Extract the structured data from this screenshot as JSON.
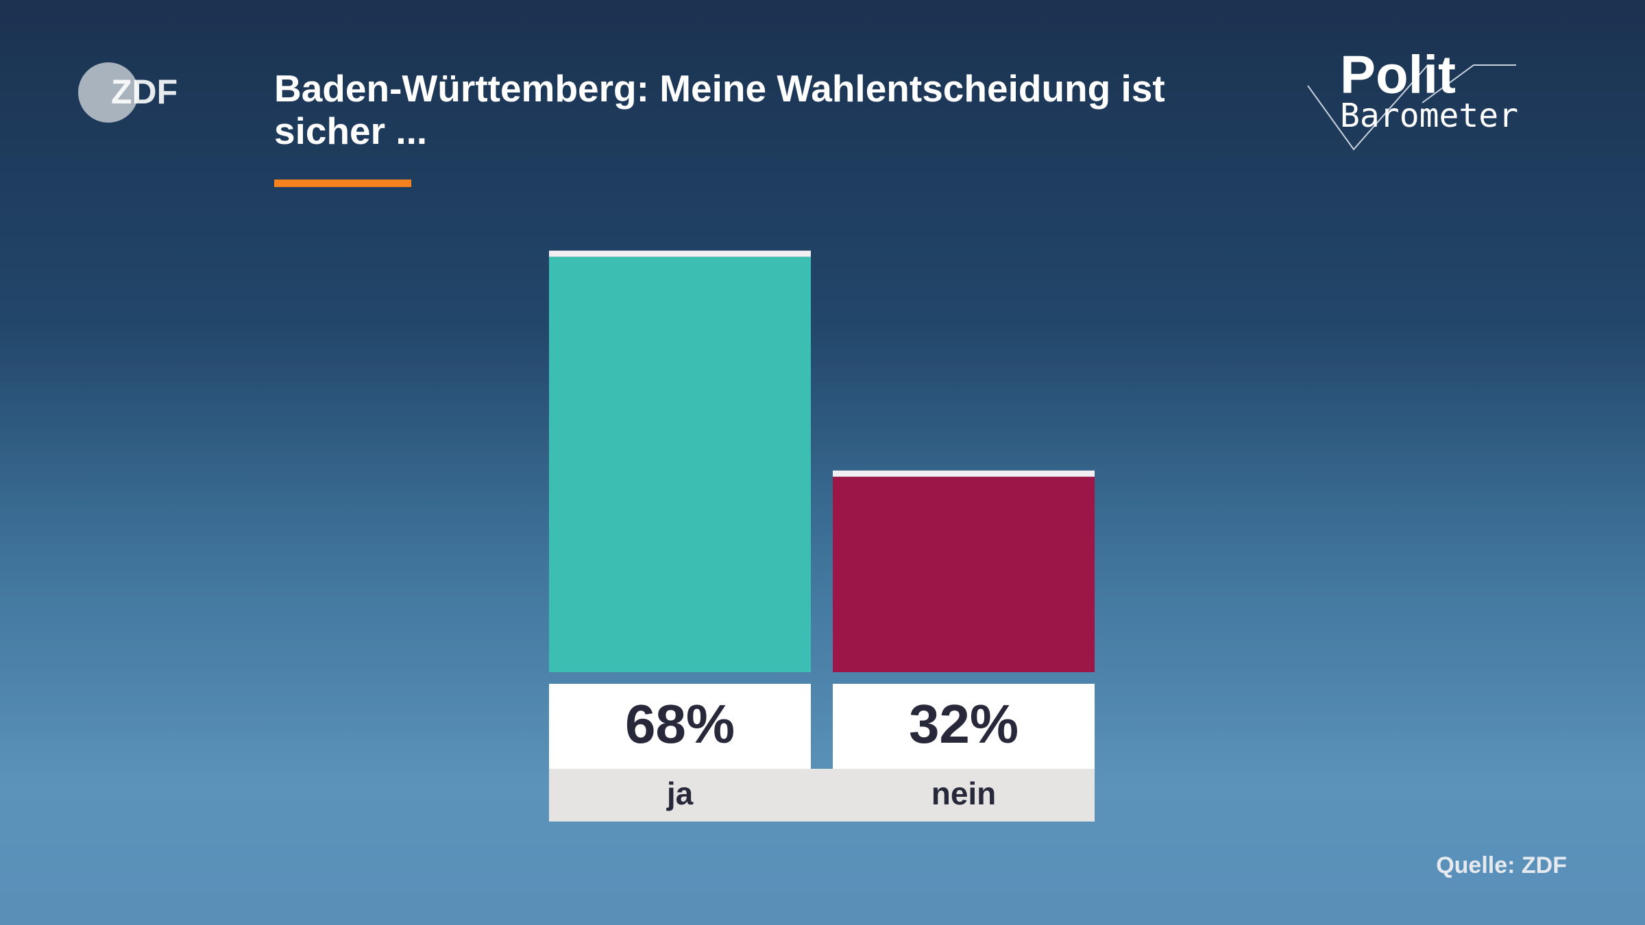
{
  "logo": "ZDF",
  "brand": {
    "line1": "Polit",
    "line2": "Barometer"
  },
  "chart_data": {
    "type": "bar",
    "title": "Baden-Württemberg: Meine Wahlentscheidung ist sicher ...",
    "categories": [
      "ja",
      "nein"
    ],
    "values": [
      68,
      32
    ],
    "value_labels": [
      "68%",
      "32%"
    ],
    "colors": [
      "#3cbfb2",
      "#9c1748"
    ],
    "source": "Quelle: ZDF"
  }
}
